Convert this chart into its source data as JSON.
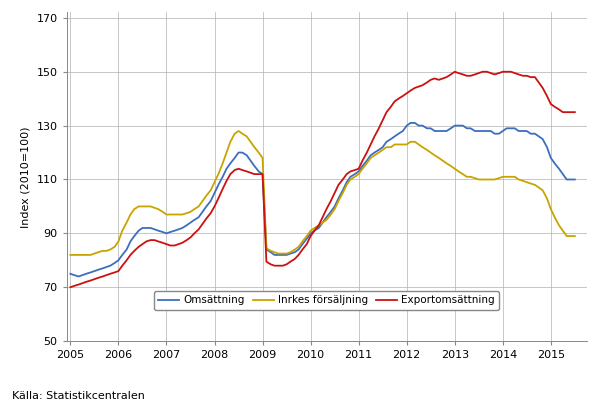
{
  "title": "",
  "ylabel": "Index (2010=100)",
  "xlabel": "",
  "source": "Källa: Statistikcentralen",
  "ylim": [
    50,
    172
  ],
  "yticks": [
    50,
    70,
    90,
    110,
    130,
    150,
    170
  ],
  "xlim": [
    2004.92,
    2015.75
  ],
  "xticks": [
    2005,
    2006,
    2007,
    2008,
    2009,
    2010,
    2011,
    2012,
    2013,
    2014,
    2015
  ],
  "line_colors": {
    "omsattning": "#3c6ebf",
    "inrikes": "#c8a400",
    "export": "#cc1111"
  },
  "legend_labels": [
    "Omsättning",
    "Inrkes försäljning",
    "Exportomsättning"
  ],
  "linewidth": 1.3,
  "omsattning": [
    [
      2005.0,
      75
    ],
    [
      2005.08,
      74.5
    ],
    [
      2005.17,
      74
    ],
    [
      2005.25,
      74.5
    ],
    [
      2005.33,
      75
    ],
    [
      2005.42,
      75.5
    ],
    [
      2005.5,
      76
    ],
    [
      2005.58,
      76.5
    ],
    [
      2005.67,
      77
    ],
    [
      2005.75,
      77.5
    ],
    [
      2005.83,
      78
    ],
    [
      2005.92,
      79
    ],
    [
      2006.0,
      80
    ],
    [
      2006.08,
      82
    ],
    [
      2006.17,
      84
    ],
    [
      2006.25,
      87
    ],
    [
      2006.33,
      89
    ],
    [
      2006.42,
      91
    ],
    [
      2006.5,
      92
    ],
    [
      2006.58,
      92
    ],
    [
      2006.67,
      92
    ],
    [
      2006.75,
      91.5
    ],
    [
      2006.83,
      91
    ],
    [
      2006.92,
      90.5
    ],
    [
      2007.0,
      90
    ],
    [
      2007.08,
      90.5
    ],
    [
      2007.17,
      91
    ],
    [
      2007.25,
      91.5
    ],
    [
      2007.33,
      92
    ],
    [
      2007.42,
      93
    ],
    [
      2007.5,
      94
    ],
    [
      2007.58,
      95
    ],
    [
      2007.67,
      96
    ],
    [
      2007.75,
      98
    ],
    [
      2007.83,
      100
    ],
    [
      2007.92,
      102
    ],
    [
      2008.0,
      105
    ],
    [
      2008.08,
      108
    ],
    [
      2008.17,
      111
    ],
    [
      2008.25,
      114
    ],
    [
      2008.33,
      116
    ],
    [
      2008.42,
      118
    ],
    [
      2008.5,
      120
    ],
    [
      2008.58,
      120
    ],
    [
      2008.67,
      119
    ],
    [
      2008.75,
      117
    ],
    [
      2008.83,
      115
    ],
    [
      2008.92,
      113
    ],
    [
      2009.0,
      112
    ],
    [
      2009.08,
      84
    ],
    [
      2009.17,
      83
    ],
    [
      2009.25,
      82
    ],
    [
      2009.33,
      82
    ],
    [
      2009.42,
      82
    ],
    [
      2009.5,
      82
    ],
    [
      2009.58,
      82.5
    ],
    [
      2009.67,
      83
    ],
    [
      2009.75,
      84
    ],
    [
      2009.83,
      86
    ],
    [
      2009.92,
      88
    ],
    [
      2010.0,
      90
    ],
    [
      2010.08,
      91
    ],
    [
      2010.17,
      92
    ],
    [
      2010.25,
      94
    ],
    [
      2010.33,
      96
    ],
    [
      2010.42,
      98
    ],
    [
      2010.5,
      100
    ],
    [
      2010.58,
      103
    ],
    [
      2010.67,
      106
    ],
    [
      2010.75,
      109
    ],
    [
      2010.83,
      111
    ],
    [
      2010.92,
      112
    ],
    [
      2011.0,
      113
    ],
    [
      2011.08,
      115
    ],
    [
      2011.17,
      117
    ],
    [
      2011.25,
      119
    ],
    [
      2011.33,
      120
    ],
    [
      2011.42,
      121
    ],
    [
      2011.5,
      122
    ],
    [
      2011.58,
      124
    ],
    [
      2011.67,
      125
    ],
    [
      2011.75,
      126
    ],
    [
      2011.83,
      127
    ],
    [
      2011.92,
      128
    ],
    [
      2012.0,
      130
    ],
    [
      2012.08,
      131
    ],
    [
      2012.17,
      131
    ],
    [
      2012.25,
      130
    ],
    [
      2012.33,
      130
    ],
    [
      2012.42,
      129
    ],
    [
      2012.5,
      129
    ],
    [
      2012.58,
      128
    ],
    [
      2012.67,
      128
    ],
    [
      2012.75,
      128
    ],
    [
      2012.83,
      128
    ],
    [
      2012.92,
      129
    ],
    [
      2013.0,
      130
    ],
    [
      2013.08,
      130
    ],
    [
      2013.17,
      130
    ],
    [
      2013.25,
      129
    ],
    [
      2013.33,
      129
    ],
    [
      2013.42,
      128
    ],
    [
      2013.5,
      128
    ],
    [
      2013.58,
      128
    ],
    [
      2013.67,
      128
    ],
    [
      2013.75,
      128
    ],
    [
      2013.83,
      127
    ],
    [
      2013.92,
      127
    ],
    [
      2014.0,
      128
    ],
    [
      2014.08,
      129
    ],
    [
      2014.17,
      129
    ],
    [
      2014.25,
      129
    ],
    [
      2014.33,
      128
    ],
    [
      2014.42,
      128
    ],
    [
      2014.5,
      128
    ],
    [
      2014.58,
      127
    ],
    [
      2014.67,
      127
    ],
    [
      2014.75,
      126
    ],
    [
      2014.83,
      125
    ],
    [
      2014.92,
      122
    ],
    [
      2015.0,
      118
    ],
    [
      2015.08,
      116
    ],
    [
      2015.17,
      114
    ],
    [
      2015.25,
      112
    ],
    [
      2015.33,
      110
    ],
    [
      2015.5,
      110
    ]
  ],
  "inrikes": [
    [
      2005.0,
      82
    ],
    [
      2005.08,
      82
    ],
    [
      2005.17,
      82
    ],
    [
      2005.25,
      82
    ],
    [
      2005.33,
      82
    ],
    [
      2005.42,
      82
    ],
    [
      2005.5,
      82.5
    ],
    [
      2005.58,
      83
    ],
    [
      2005.67,
      83.5
    ],
    [
      2005.75,
      83.5
    ],
    [
      2005.83,
      84
    ],
    [
      2005.92,
      85
    ],
    [
      2006.0,
      87
    ],
    [
      2006.08,
      91
    ],
    [
      2006.17,
      94
    ],
    [
      2006.25,
      97
    ],
    [
      2006.33,
      99
    ],
    [
      2006.42,
      100
    ],
    [
      2006.5,
      100
    ],
    [
      2006.58,
      100
    ],
    [
      2006.67,
      100
    ],
    [
      2006.75,
      99.5
    ],
    [
      2006.83,
      99
    ],
    [
      2006.92,
      98
    ],
    [
      2007.0,
      97
    ],
    [
      2007.08,
      97
    ],
    [
      2007.17,
      97
    ],
    [
      2007.25,
      97
    ],
    [
      2007.33,
      97
    ],
    [
      2007.42,
      97.5
    ],
    [
      2007.5,
      98
    ],
    [
      2007.58,
      99
    ],
    [
      2007.67,
      100
    ],
    [
      2007.75,
      102
    ],
    [
      2007.83,
      104
    ],
    [
      2007.92,
      106
    ],
    [
      2008.0,
      109
    ],
    [
      2008.08,
      112
    ],
    [
      2008.17,
      116
    ],
    [
      2008.25,
      120
    ],
    [
      2008.33,
      124
    ],
    [
      2008.42,
      127
    ],
    [
      2008.5,
      128
    ],
    [
      2008.58,
      127
    ],
    [
      2008.67,
      126
    ],
    [
      2008.75,
      124
    ],
    [
      2008.83,
      122
    ],
    [
      2008.92,
      120
    ],
    [
      2009.0,
      118
    ],
    [
      2009.08,
      84.5
    ],
    [
      2009.17,
      83.5
    ],
    [
      2009.25,
      83
    ],
    [
      2009.33,
      82.5
    ],
    [
      2009.42,
      82.5
    ],
    [
      2009.5,
      82.5
    ],
    [
      2009.58,
      83
    ],
    [
      2009.67,
      84
    ],
    [
      2009.75,
      85
    ],
    [
      2009.83,
      87
    ],
    [
      2009.92,
      89
    ],
    [
      2010.0,
      91
    ],
    [
      2010.08,
      92
    ],
    [
      2010.17,
      93
    ],
    [
      2010.25,
      94
    ],
    [
      2010.33,
      95
    ],
    [
      2010.42,
      97
    ],
    [
      2010.5,
      99
    ],
    [
      2010.58,
      102
    ],
    [
      2010.67,
      105
    ],
    [
      2010.75,
      108
    ],
    [
      2010.83,
      110
    ],
    [
      2010.92,
      111
    ],
    [
      2011.0,
      112
    ],
    [
      2011.08,
      114
    ],
    [
      2011.17,
      116
    ],
    [
      2011.25,
      118
    ],
    [
      2011.33,
      119
    ],
    [
      2011.42,
      120
    ],
    [
      2011.5,
      121
    ],
    [
      2011.58,
      122
    ],
    [
      2011.67,
      122
    ],
    [
      2011.75,
      123
    ],
    [
      2011.83,
      123
    ],
    [
      2011.92,
      123
    ],
    [
      2012.0,
      123
    ],
    [
      2012.08,
      124
    ],
    [
      2012.17,
      124
    ],
    [
      2012.25,
      123
    ],
    [
      2012.33,
      122
    ],
    [
      2012.42,
      121
    ],
    [
      2012.5,
      120
    ],
    [
      2012.58,
      119
    ],
    [
      2012.67,
      118
    ],
    [
      2012.75,
      117
    ],
    [
      2012.83,
      116
    ],
    [
      2012.92,
      115
    ],
    [
      2013.0,
      114
    ],
    [
      2013.08,
      113
    ],
    [
      2013.17,
      112
    ],
    [
      2013.25,
      111
    ],
    [
      2013.33,
      111
    ],
    [
      2013.42,
      110.5
    ],
    [
      2013.5,
      110
    ],
    [
      2013.58,
      110
    ],
    [
      2013.67,
      110
    ],
    [
      2013.75,
      110
    ],
    [
      2013.83,
      110
    ],
    [
      2013.92,
      110.5
    ],
    [
      2014.0,
      111
    ],
    [
      2014.08,
      111
    ],
    [
      2014.17,
      111
    ],
    [
      2014.25,
      111
    ],
    [
      2014.33,
      110
    ],
    [
      2014.42,
      109.5
    ],
    [
      2014.5,
      109
    ],
    [
      2014.58,
      108.5
    ],
    [
      2014.67,
      108
    ],
    [
      2014.75,
      107
    ],
    [
      2014.83,
      106
    ],
    [
      2014.92,
      103
    ],
    [
      2015.0,
      99
    ],
    [
      2015.08,
      96
    ],
    [
      2015.17,
      93
    ],
    [
      2015.25,
      91
    ],
    [
      2015.33,
      89
    ],
    [
      2015.5,
      89
    ]
  ],
  "export": [
    [
      2005.0,
      70
    ],
    [
      2005.08,
      70.5
    ],
    [
      2005.17,
      71
    ],
    [
      2005.25,
      71.5
    ],
    [
      2005.33,
      72
    ],
    [
      2005.42,
      72.5
    ],
    [
      2005.5,
      73
    ],
    [
      2005.58,
      73.5
    ],
    [
      2005.67,
      74
    ],
    [
      2005.75,
      74.5
    ],
    [
      2005.83,
      75
    ],
    [
      2005.92,
      75.5
    ],
    [
      2006.0,
      76
    ],
    [
      2006.08,
      78
    ],
    [
      2006.17,
      80
    ],
    [
      2006.25,
      82
    ],
    [
      2006.33,
      83.5
    ],
    [
      2006.42,
      85
    ],
    [
      2006.5,
      86
    ],
    [
      2006.58,
      87
    ],
    [
      2006.67,
      87.5
    ],
    [
      2006.75,
      87.5
    ],
    [
      2006.83,
      87
    ],
    [
      2006.92,
      86.5
    ],
    [
      2007.0,
      86
    ],
    [
      2007.08,
      85.5
    ],
    [
      2007.17,
      85.5
    ],
    [
      2007.25,
      86
    ],
    [
      2007.33,
      86.5
    ],
    [
      2007.42,
      87.5
    ],
    [
      2007.5,
      88.5
    ],
    [
      2007.58,
      90
    ],
    [
      2007.67,
      91.5
    ],
    [
      2007.75,
      93.5
    ],
    [
      2007.83,
      95.5
    ],
    [
      2007.92,
      97.5
    ],
    [
      2008.0,
      100
    ],
    [
      2008.08,
      103
    ],
    [
      2008.17,
      106.5
    ],
    [
      2008.25,
      109.5
    ],
    [
      2008.33,
      112
    ],
    [
      2008.42,
      113.5
    ],
    [
      2008.5,
      114
    ],
    [
      2008.58,
      113.5
    ],
    [
      2008.67,
      113
    ],
    [
      2008.75,
      112.5
    ],
    [
      2008.83,
      112
    ],
    [
      2008.92,
      112
    ],
    [
      2009.0,
      112
    ],
    [
      2009.08,
      79.5
    ],
    [
      2009.17,
      78.5
    ],
    [
      2009.25,
      78
    ],
    [
      2009.33,
      78
    ],
    [
      2009.42,
      78
    ],
    [
      2009.5,
      78.5
    ],
    [
      2009.58,
      79.5
    ],
    [
      2009.67,
      80.5
    ],
    [
      2009.75,
      82
    ],
    [
      2009.83,
      84
    ],
    [
      2009.92,
      86
    ],
    [
      2010.0,
      89
    ],
    [
      2010.08,
      91
    ],
    [
      2010.17,
      93
    ],
    [
      2010.25,
      96
    ],
    [
      2010.33,
      99
    ],
    [
      2010.42,
      102
    ],
    [
      2010.5,
      105
    ],
    [
      2010.58,
      108
    ],
    [
      2010.67,
      110
    ],
    [
      2010.75,
      112
    ],
    [
      2010.83,
      113
    ],
    [
      2010.92,
      113.5
    ],
    [
      2011.0,
      114
    ],
    [
      2011.08,
      117
    ],
    [
      2011.17,
      120
    ],
    [
      2011.25,
      123
    ],
    [
      2011.33,
      126
    ],
    [
      2011.42,
      129
    ],
    [
      2011.5,
      132
    ],
    [
      2011.58,
      135
    ],
    [
      2011.67,
      137
    ],
    [
      2011.75,
      139
    ],
    [
      2011.83,
      140
    ],
    [
      2011.92,
      141
    ],
    [
      2012.0,
      142
    ],
    [
      2012.08,
      143
    ],
    [
      2012.17,
      144
    ],
    [
      2012.25,
      144.5
    ],
    [
      2012.33,
      145
    ],
    [
      2012.42,
      146
    ],
    [
      2012.5,
      147
    ],
    [
      2012.58,
      147.5
    ],
    [
      2012.67,
      147
    ],
    [
      2012.75,
      147.5
    ],
    [
      2012.83,
      148
    ],
    [
      2012.92,
      149
    ],
    [
      2013.0,
      150
    ],
    [
      2013.08,
      149.5
    ],
    [
      2013.17,
      149
    ],
    [
      2013.25,
      148.5
    ],
    [
      2013.33,
      148.5
    ],
    [
      2013.42,
      149
    ],
    [
      2013.5,
      149.5
    ],
    [
      2013.58,
      150
    ],
    [
      2013.67,
      150
    ],
    [
      2013.75,
      149.5
    ],
    [
      2013.83,
      149
    ],
    [
      2013.92,
      149.5
    ],
    [
      2014.0,
      150
    ],
    [
      2014.08,
      150
    ],
    [
      2014.17,
      150
    ],
    [
      2014.25,
      149.5
    ],
    [
      2014.33,
      149
    ],
    [
      2014.42,
      148.5
    ],
    [
      2014.5,
      148.5
    ],
    [
      2014.58,
      148
    ],
    [
      2014.67,
      148
    ],
    [
      2014.75,
      146
    ],
    [
      2014.83,
      144
    ],
    [
      2014.92,
      141
    ],
    [
      2015.0,
      138
    ],
    [
      2015.08,
      137
    ],
    [
      2015.17,
      136
    ],
    [
      2015.25,
      135
    ],
    [
      2015.33,
      135
    ],
    [
      2015.5,
      135
    ]
  ]
}
